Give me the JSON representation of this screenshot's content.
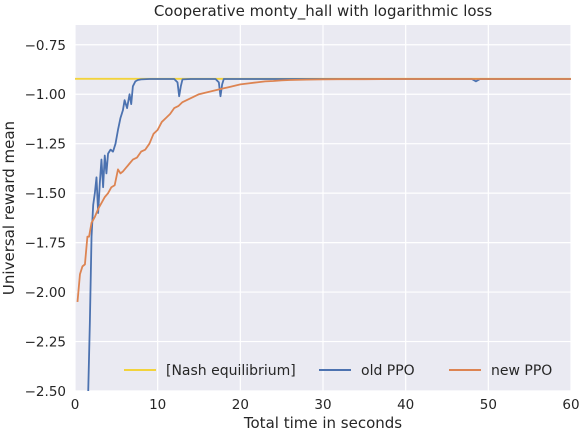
{
  "chart_data": {
    "type": "line",
    "title": "Cooperative monty_hall with logarithmic loss",
    "xlabel": "Total time in seconds",
    "ylabel": "Universal reward mean",
    "xlim": [
      0,
      60
    ],
    "ylim": [
      -2.5,
      -0.65
    ],
    "xticks": [
      0,
      10,
      20,
      30,
      40,
      50,
      60
    ],
    "yticks": [
      -2.5,
      -2.25,
      -2.0,
      -1.75,
      -1.5,
      -1.25,
      -1.0,
      -0.75
    ],
    "xtick_labels": [
      "0",
      "10",
      "20",
      "30",
      "40",
      "50",
      "60"
    ],
    "ytick_labels": [
      "−2.50",
      "−2.25",
      "−2.00",
      "−1.75",
      "−1.50",
      "−1.25",
      "−1.00",
      "−0.75"
    ],
    "grid": true,
    "legend_position": "lower-right",
    "series": [
      {
        "name": "[Nash equilibrium]",
        "color": "#f2d33c",
        "x": [
          0,
          60
        ],
        "y": [
          -0.922,
          -0.922
        ]
      },
      {
        "name": "old PPO",
        "color": "#4c72b0",
        "x": [
          1.6,
          1.8,
          2.0,
          2.2,
          2.4,
          2.6,
          2.8,
          3.0,
          3.2,
          3.4,
          3.6,
          3.8,
          4.0,
          4.3,
          4.6,
          4.9,
          5.2,
          5.5,
          5.8,
          6.0,
          6.3,
          6.6,
          6.8,
          7.0,
          7.3,
          7.6,
          8.0,
          9.0,
          10.0,
          11.0,
          12.0,
          12.4,
          12.6,
          12.8,
          13.0,
          14.0,
          15.0,
          16.0,
          17.0,
          17.4,
          17.6,
          17.8,
          18.0,
          20.0,
          25.0,
          30.0,
          35.0,
          40.0,
          45.0,
          48.0,
          48.5,
          49.0,
          50.0,
          55.0,
          60.0
        ],
        "y": [
          -2.5,
          -2.15,
          -1.72,
          -1.56,
          -1.5,
          -1.42,
          -1.6,
          -1.45,
          -1.33,
          -1.47,
          -1.31,
          -1.4,
          -1.3,
          -1.28,
          -1.29,
          -1.25,
          -1.18,
          -1.12,
          -1.08,
          -1.03,
          -1.07,
          -1.0,
          -1.05,
          -0.96,
          -0.935,
          -0.928,
          -0.925,
          -0.923,
          -0.923,
          -0.923,
          -0.923,
          -0.94,
          -1.01,
          -0.96,
          -0.925,
          -0.923,
          -0.923,
          -0.923,
          -0.923,
          -0.94,
          -1.01,
          -0.95,
          -0.923,
          -0.923,
          -0.923,
          -0.923,
          -0.923,
          -0.923,
          -0.923,
          -0.923,
          -0.935,
          -0.923,
          -0.923,
          -0.923,
          -0.923
        ]
      },
      {
        "name": "new PPO",
        "color": "#dd8452",
        "x": [
          0.3,
          0.6,
          0.9,
          1.2,
          1.5,
          1.7,
          2.0,
          2.4,
          2.8,
          3.2,
          3.6,
          4.0,
          4.4,
          4.8,
          5.2,
          5.5,
          5.8,
          6.2,
          6.6,
          7.0,
          7.5,
          8.0,
          8.5,
          9.0,
          9.5,
          10.0,
          10.5,
          11.0,
          11.5,
          12.0,
          12.5,
          13.0,
          13.5,
          14.0,
          14.5,
          15.0,
          15.5,
          16.0,
          16.5,
          17.0,
          17.5,
          18.0,
          18.5,
          19.0,
          19.5,
          20.0,
          21.0,
          22.0,
          23.0,
          24.0,
          25.0,
          26.0,
          28.0,
          30.0,
          32.0,
          35.0,
          38.0,
          40.0,
          42.0,
          45.0,
          48.0,
          50.0,
          52.0,
          55.0,
          58.0,
          60.0
        ],
        "y": [
          -2.05,
          -1.91,
          -1.87,
          -1.86,
          -1.72,
          -1.72,
          -1.65,
          -1.62,
          -1.58,
          -1.55,
          -1.52,
          -1.5,
          -1.47,
          -1.46,
          -1.38,
          -1.4,
          -1.39,
          -1.37,
          -1.35,
          -1.33,
          -1.32,
          -1.29,
          -1.28,
          -1.25,
          -1.2,
          -1.18,
          -1.14,
          -1.12,
          -1.1,
          -1.07,
          -1.06,
          -1.04,
          -1.03,
          -1.02,
          -1.01,
          -1.0,
          -0.995,
          -0.99,
          -0.985,
          -0.98,
          -0.975,
          -0.97,
          -0.965,
          -0.96,
          -0.955,
          -0.95,
          -0.945,
          -0.94,
          -0.935,
          -0.933,
          -0.93,
          -0.928,
          -0.926,
          -0.925,
          -0.924,
          -0.924,
          -0.923,
          -0.923,
          -0.923,
          -0.923,
          -0.923,
          -0.923,
          -0.923,
          -0.923,
          -0.923,
          -0.923
        ]
      }
    ]
  }
}
